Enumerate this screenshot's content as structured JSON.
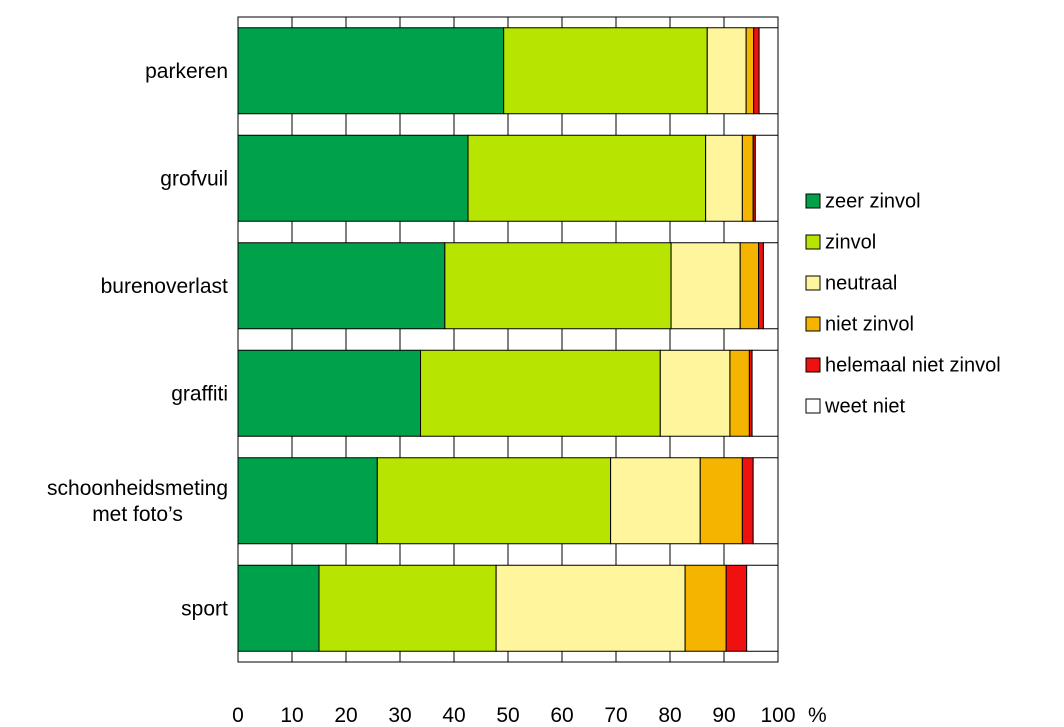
{
  "chart_data": {
    "type": "bar",
    "orientation": "horizontal",
    "stacked": true,
    "title": "",
    "xlabel": "",
    "ylabel": "",
    "xlim": [
      0,
      100
    ],
    "x_ticks": [
      "0",
      "10",
      "20",
      "30",
      "40",
      "50",
      "60",
      "70",
      "80",
      "90",
      "100"
    ],
    "unit": "%",
    "grid": true,
    "legend_position": "right",
    "categories": [
      [
        "parkeren"
      ],
      [
        "grofvuil"
      ],
      [
        "burenoverlast"
      ],
      [
        "graffiti"
      ],
      [
        "schoonheidsmeting",
        "met foto’s"
      ],
      [
        "sport"
      ]
    ],
    "series": [
      {
        "name": "zeer zinvol",
        "color": "#00A14B",
        "values": [
          49.2,
          42.6,
          38.3,
          33.8,
          25.8,
          15.0
        ]
      },
      {
        "name": "zinvol",
        "color": "#B7E400",
        "values": [
          37.7,
          44.0,
          41.9,
          44.4,
          43.2,
          32.8
        ]
      },
      {
        "name": "neutraal",
        "color": "#FFF59D",
        "values": [
          7.2,
          6.8,
          12.8,
          12.9,
          16.6,
          35.0
        ]
      },
      {
        "name": "niet zinvol",
        "color": "#F5B400",
        "values": [
          1.4,
          2.0,
          3.4,
          3.6,
          7.8,
          7.6
        ]
      },
      {
        "name": "helemaal niet zinvol",
        "color": "#F01010",
        "values": [
          1.0,
          0.4,
          0.9,
          0.5,
          2.0,
          3.8
        ]
      },
      {
        "name": "weet niet",
        "color": "#FFFFFF",
        "values": [
          3.5,
          4.2,
          2.7,
          4.8,
          4.6,
          5.8
        ]
      }
    ]
  }
}
